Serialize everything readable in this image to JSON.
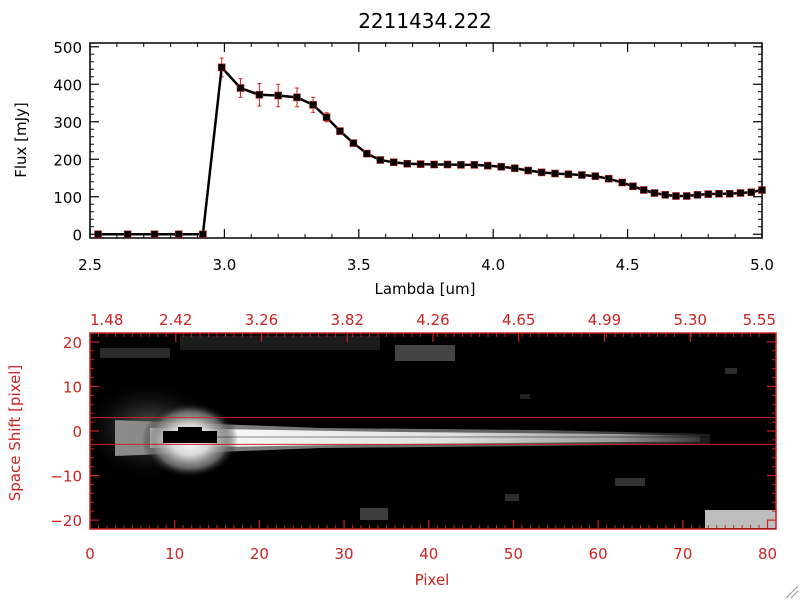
{
  "colors": {
    "axis": "#000000",
    "accent_red": "#cc2222",
    "marker_fill": "#000000",
    "errorbar": "#cc2222",
    "image_bg": "#000000"
  },
  "chart_data": [
    {
      "type": "line",
      "title": "2211434.222",
      "xlabel": "Lambda [um]",
      "ylabel": "Flux [mJy]",
      "xlim": [
        2.5,
        5.0
      ],
      "ylim": [
        -10,
        510
      ],
      "xticks": [
        2.5,
        3.0,
        3.5,
        4.0,
        4.5,
        5.0
      ],
      "xtick_labels": [
        "2.5",
        "3.0",
        "3.5",
        "4.0",
        "4.5",
        "5.0"
      ],
      "yticks": [
        0,
        100,
        200,
        300,
        400,
        500
      ],
      "ytick_labels": [
        "0",
        "100",
        "200",
        "300",
        "400",
        "500"
      ],
      "grid": false,
      "series": [
        {
          "x": [
            2.53,
            2.64,
            2.74,
            2.83,
            2.92,
            2.99,
            3.06,
            3.13,
            3.2,
            3.27,
            3.33,
            3.38,
            3.43,
            3.48,
            3.53,
            3.58,
            3.63,
            3.68,
            3.73,
            3.78,
            3.83,
            3.88,
            3.93,
            3.98,
            4.03,
            4.08,
            4.13,
            4.18,
            4.23,
            4.28,
            4.33,
            4.38,
            4.43,
            4.48,
            4.52,
            4.56,
            4.6,
            4.64,
            4.68,
            4.72,
            4.76,
            4.8,
            4.84,
            4.88,
            4.92,
            4.96,
            5.0
          ],
          "y": [
            0,
            0,
            0,
            0,
            0,
            445,
            390,
            372,
            370,
            365,
            345,
            312,
            275,
            243,
            215,
            198,
            192,
            188,
            187,
            186,
            186,
            185,
            185,
            183,
            180,
            176,
            170,
            165,
            162,
            160,
            158,
            155,
            148,
            138,
            128,
            118,
            110,
            105,
            102,
            102,
            105,
            107,
            108,
            108,
            110,
            112,
            118
          ],
          "yerr": [
            0,
            0,
            0,
            0,
            0,
            25,
            25,
            30,
            30,
            25,
            20,
            12,
            8,
            6,
            5,
            5,
            5,
            5,
            5,
            5,
            5,
            5,
            5,
            5,
            5,
            5,
            5,
            5,
            5,
            5,
            5,
            5,
            5,
            5,
            5,
            5,
            5,
            5,
            5,
            5,
            5,
            5,
            5,
            5,
            5,
            5,
            8
          ]
        }
      ]
    },
    {
      "type": "heatmap",
      "xlabel": "Pixel",
      "ylabel": "Space Shift [pixel]",
      "xlim": [
        0,
        81
      ],
      "ylim": [
        -22,
        22
      ],
      "xticks": [
        0,
        10,
        20,
        30,
        40,
        50,
        60,
        70,
        80
      ],
      "xtick_labels": [
        "0",
        "10",
        "20",
        "30",
        "40",
        "50",
        "60",
        "70",
        "80"
      ],
      "yticks": [
        -20,
        -10,
        0,
        10,
        20
      ],
      "ytick_labels": [
        "−20",
        "−10",
        "0",
        "10",
        "20"
      ],
      "top_axis_labels": [
        "1.48",
        "2.42",
        "3.26",
        "3.82",
        "4.26",
        "4.65",
        "4.99",
        "5.30",
        "5.55"
      ],
      "aperture_lines": [
        3,
        -3
      ],
      "colormap": "gray"
    }
  ]
}
